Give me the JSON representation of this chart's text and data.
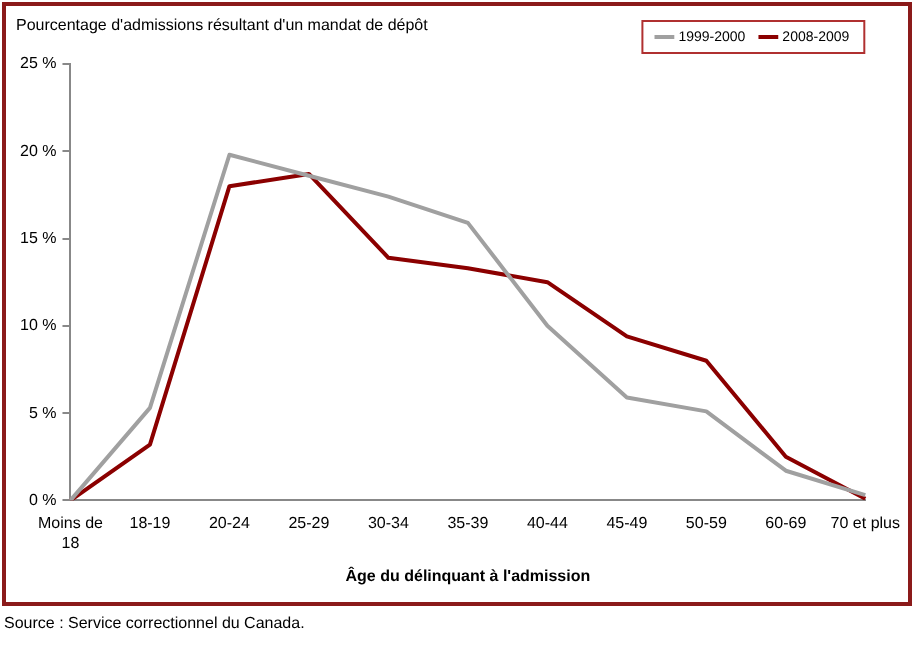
{
  "chart_data": {
    "type": "line",
    "ylabel": "Pourcentage d'admissions résultant d'un mandat de dépôt",
    "xlabel": "Âge du délinquant à l'admission",
    "categories": [
      "Moins de 18",
      "18-19",
      "20-24",
      "25-29",
      "30-34",
      "35-39",
      "40-44",
      "45-49",
      "50-59",
      "60-69",
      "70 et plus"
    ],
    "series": [
      {
        "name": "1999-2000",
        "color": "#a0a0a0",
        "values": [
          0,
          5.3,
          19.8,
          18.6,
          17.4,
          15.9,
          10,
          5.9,
          5.1,
          1.7,
          0.3
        ]
      },
      {
        "name": "2008-2009",
        "color": "#8b0000",
        "values": [
          0,
          3.2,
          18,
          18.7,
          13.9,
          13.3,
          12.5,
          9.4,
          8,
          2.5,
          0.1
        ]
      }
    ],
    "ylim": [
      0,
      25
    ],
    "yticks": [
      {
        "value": 0,
        "label": "0 %"
      },
      {
        "value": 5,
        "label": "5 %"
      },
      {
        "value": 10,
        "label": "10 %"
      },
      {
        "value": 15,
        "label": "15 %"
      },
      {
        "value": 20,
        "label": "20 %"
      },
      {
        "value": 25,
        "label": "25 %"
      }
    ],
    "grid": false,
    "legend": "top right",
    "marker": "none",
    "line_style": "solid",
    "annotations": [
      "Source : Service correctionnel du Canada."
    ]
  }
}
